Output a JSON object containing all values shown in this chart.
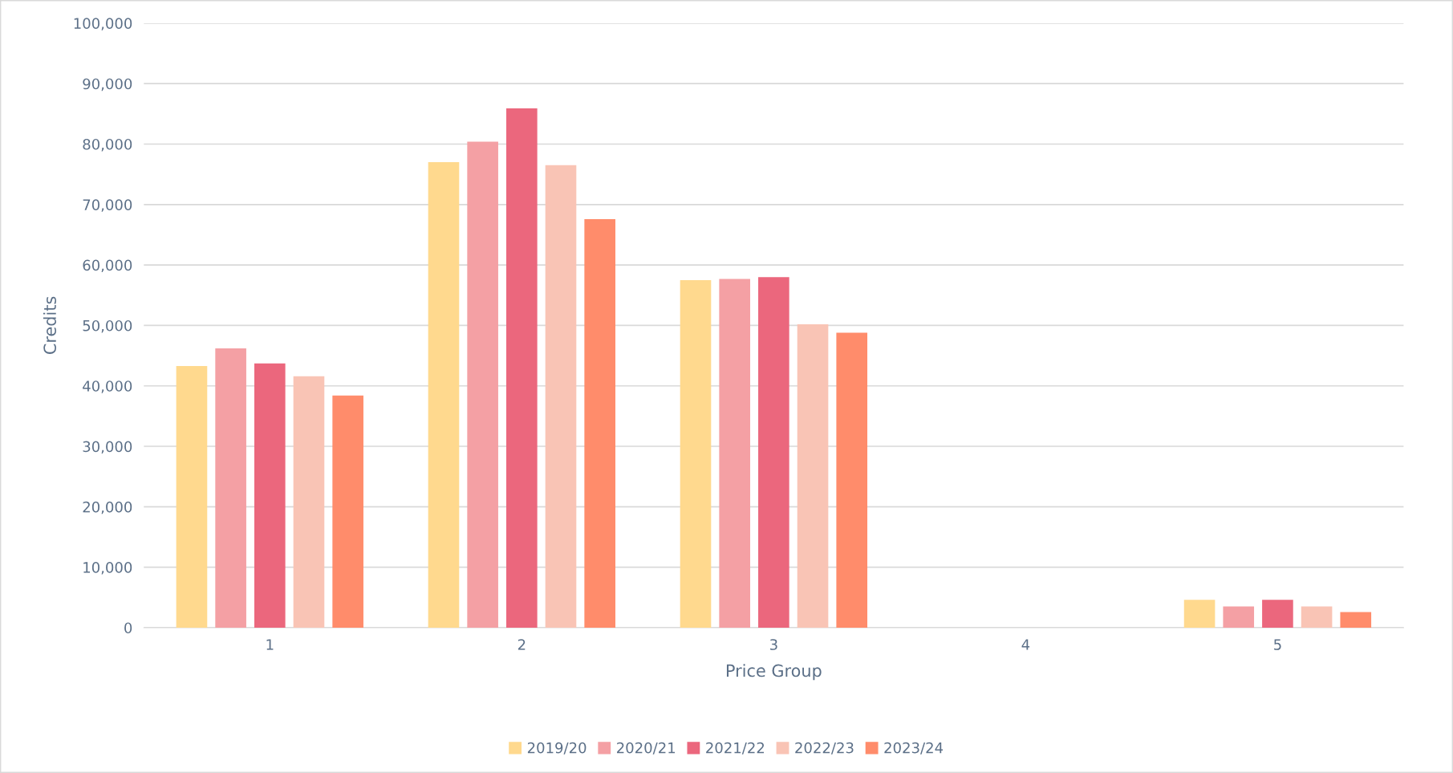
{
  "chart_data": {
    "type": "bar",
    "xlabel": "Price Group",
    "ylabel": "Credits",
    "categories": [
      "1",
      "2",
      "3",
      "4",
      "5"
    ],
    "series": [
      {
        "name": "2019/20",
        "color": "#ffd98e",
        "values": [
          43300,
          77000,
          57500,
          0,
          4600
        ]
      },
      {
        "name": "2020/21",
        "color": "#f4a0a4",
        "values": [
          46200,
          80400,
          57700,
          0,
          3500
        ]
      },
      {
        "name": "2021/22",
        "color": "#eb677d",
        "values": [
          43700,
          85900,
          58000,
          0,
          4600
        ]
      },
      {
        "name": "2022/23",
        "color": "#f9c4b5",
        "values": [
          41600,
          76500,
          50200,
          0,
          3500
        ]
      },
      {
        "name": "2023/24",
        "color": "#ff8c6b",
        "values": [
          38400,
          67600,
          48800,
          0,
          2600
        ]
      }
    ],
    "ylim": [
      0,
      100000
    ],
    "yticks": [
      {
        "value": 0,
        "label": "0"
      },
      {
        "value": 10000,
        "label": "10,000"
      },
      {
        "value": 20000,
        "label": "20,000"
      },
      {
        "value": 30000,
        "label": "30,000"
      },
      {
        "value": 40000,
        "label": "40,000"
      },
      {
        "value": 50000,
        "label": "50,000"
      },
      {
        "value": 60000,
        "label": "60,000"
      },
      {
        "value": 70000,
        "label": "70,000"
      },
      {
        "value": 80000,
        "label": "80,000"
      },
      {
        "value": 90000,
        "label": "90,000"
      },
      {
        "value": 100000,
        "label": "100,000"
      }
    ],
    "grid": "y",
    "legend": "bottom"
  }
}
